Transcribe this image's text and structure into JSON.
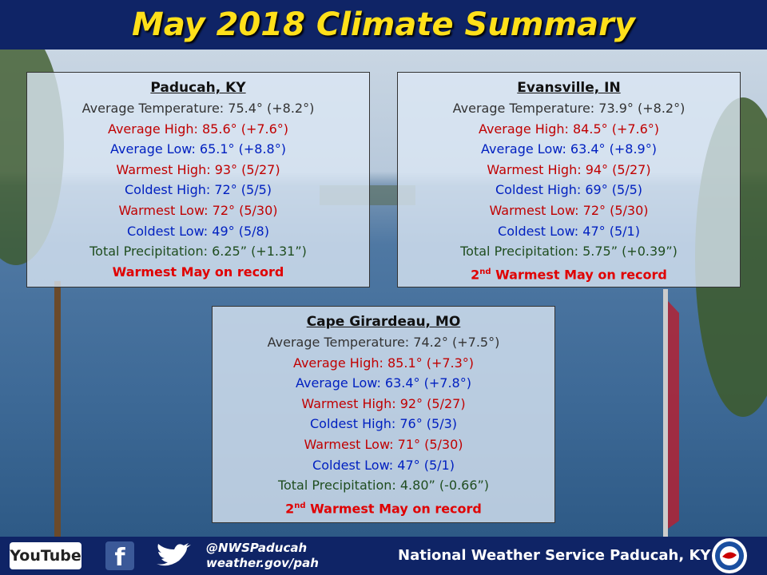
{
  "header": {
    "title": "May 2018 Climate Summary"
  },
  "stations": [
    {
      "name": "Paducah, KY",
      "lines": [
        "Average Temperature: 75.4° (+8.2°)",
        "Average High: 85.6° (+7.6°)",
        "Average Low: 65.1° (+8.8°)",
        "Warmest High: 93° (5/27)",
        "Coldest High: 72° (5/5)",
        "Warmest Low: 72° (5/30)",
        "Coldest Low: 49° (5/8)",
        "Total Precipitation: 6.25” (+1.31”)"
      ],
      "record": {
        "text": "Warmest May on record"
      }
    },
    {
      "name": "Evansville, IN",
      "lines": [
        "Average Temperature: 73.9° (+8.2°)",
        "Average High: 84.5° (+7.6°)",
        "Average Low: 63.4° (+8.9°)",
        "Warmest High: 94° (5/27)",
        "Coldest High: 69° (5/5)",
        "Warmest Low: 72° (5/30)",
        "Coldest Low: 47° (5/1)",
        "Total Precipitation: 5.75” (+0.39”)"
      ],
      "record": {
        "rank": "2",
        "suffix": "nd",
        "text": " Warmest May on record"
      }
    },
    {
      "name": "Cape Girardeau, MO",
      "lines": [
        "Average Temperature: 74.2° (+7.5°)",
        "Average High: 85.1° (+7.3°)",
        "Average Low: 63.4° (+7.8°)",
        "Warmest High: 92° (5/27)",
        "Coldest High: 76° (5/3)",
        "Warmest Low: 71° (5/30)",
        "Coldest Low: 47° (5/1)",
        "Total Precipitation: 4.80” (-0.66”)"
      ],
      "record": {
        "rank": "2",
        "suffix": "nd",
        "text": " Warmest May on record"
      }
    }
  ],
  "footer": {
    "youtube": "YouTube",
    "facebook": "f",
    "handle": "@NWSPaducah",
    "website": "weather.gov/pah",
    "office": "National Weather Service Paducah, KY"
  }
}
